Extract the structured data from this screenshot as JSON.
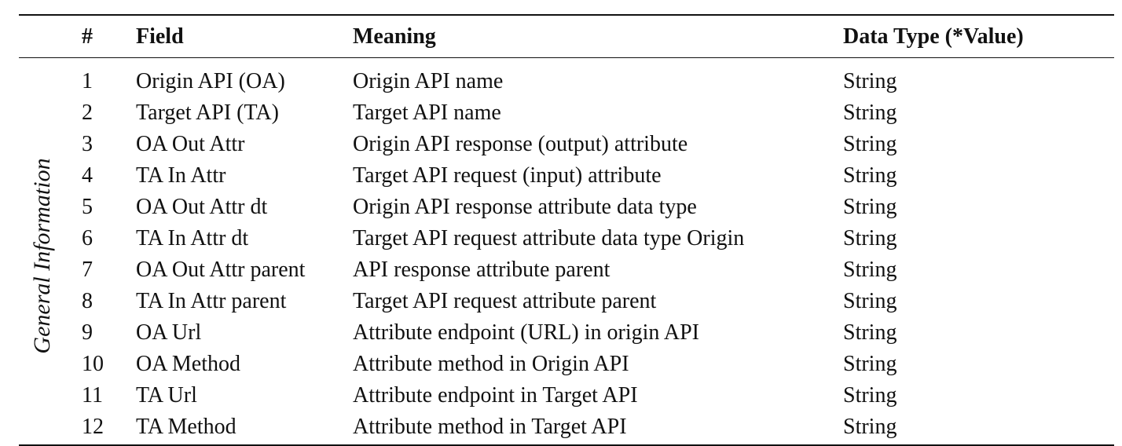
{
  "table": {
    "group_label": "General Information",
    "headers": {
      "num": "#",
      "field": "Field",
      "meaning": "Meaning",
      "data_type": "Data Type (*Value)"
    },
    "rows": [
      {
        "num": "1",
        "field": "Origin API (OA)",
        "meaning": "Origin API name",
        "data_type": "String"
      },
      {
        "num": "2",
        "field": "Target API (TA)",
        "meaning": "Target API name",
        "data_type": "String"
      },
      {
        "num": "3",
        "field": "OA Out Attr",
        "meaning": "Origin API response (output) attribute",
        "data_type": "String"
      },
      {
        "num": "4",
        "field": "TA In Attr",
        "meaning": "Target API request (input) attribute",
        "data_type": "String"
      },
      {
        "num": "5",
        "field": "OA Out Attr dt",
        "meaning": "Origin API response attribute data type",
        "data_type": "String"
      },
      {
        "num": "6",
        "field": "TA In Attr dt",
        "meaning": "Target API request attribute data type Origin",
        "data_type": "String"
      },
      {
        "num": "7",
        "field": "OA Out Attr parent",
        "meaning": "API response attribute parent",
        "data_type": "String"
      },
      {
        "num": "8",
        "field": "TA In Attr parent",
        "meaning": "Target API request attribute parent",
        "data_type": "String"
      },
      {
        "num": "9",
        "field": "OA Url",
        "meaning": "Attribute endpoint (URL) in origin API",
        "data_type": "String"
      },
      {
        "num": "10",
        "field": "OA Method",
        "meaning": "Attribute method in Origin API",
        "data_type": "String"
      },
      {
        "num": "11",
        "field": "TA Url",
        "meaning": "Attribute endpoint in Target API",
        "data_type": "String"
      },
      {
        "num": "12",
        "field": "TA Method",
        "meaning": "Attribute method in Target API",
        "data_type": "String"
      }
    ]
  }
}
